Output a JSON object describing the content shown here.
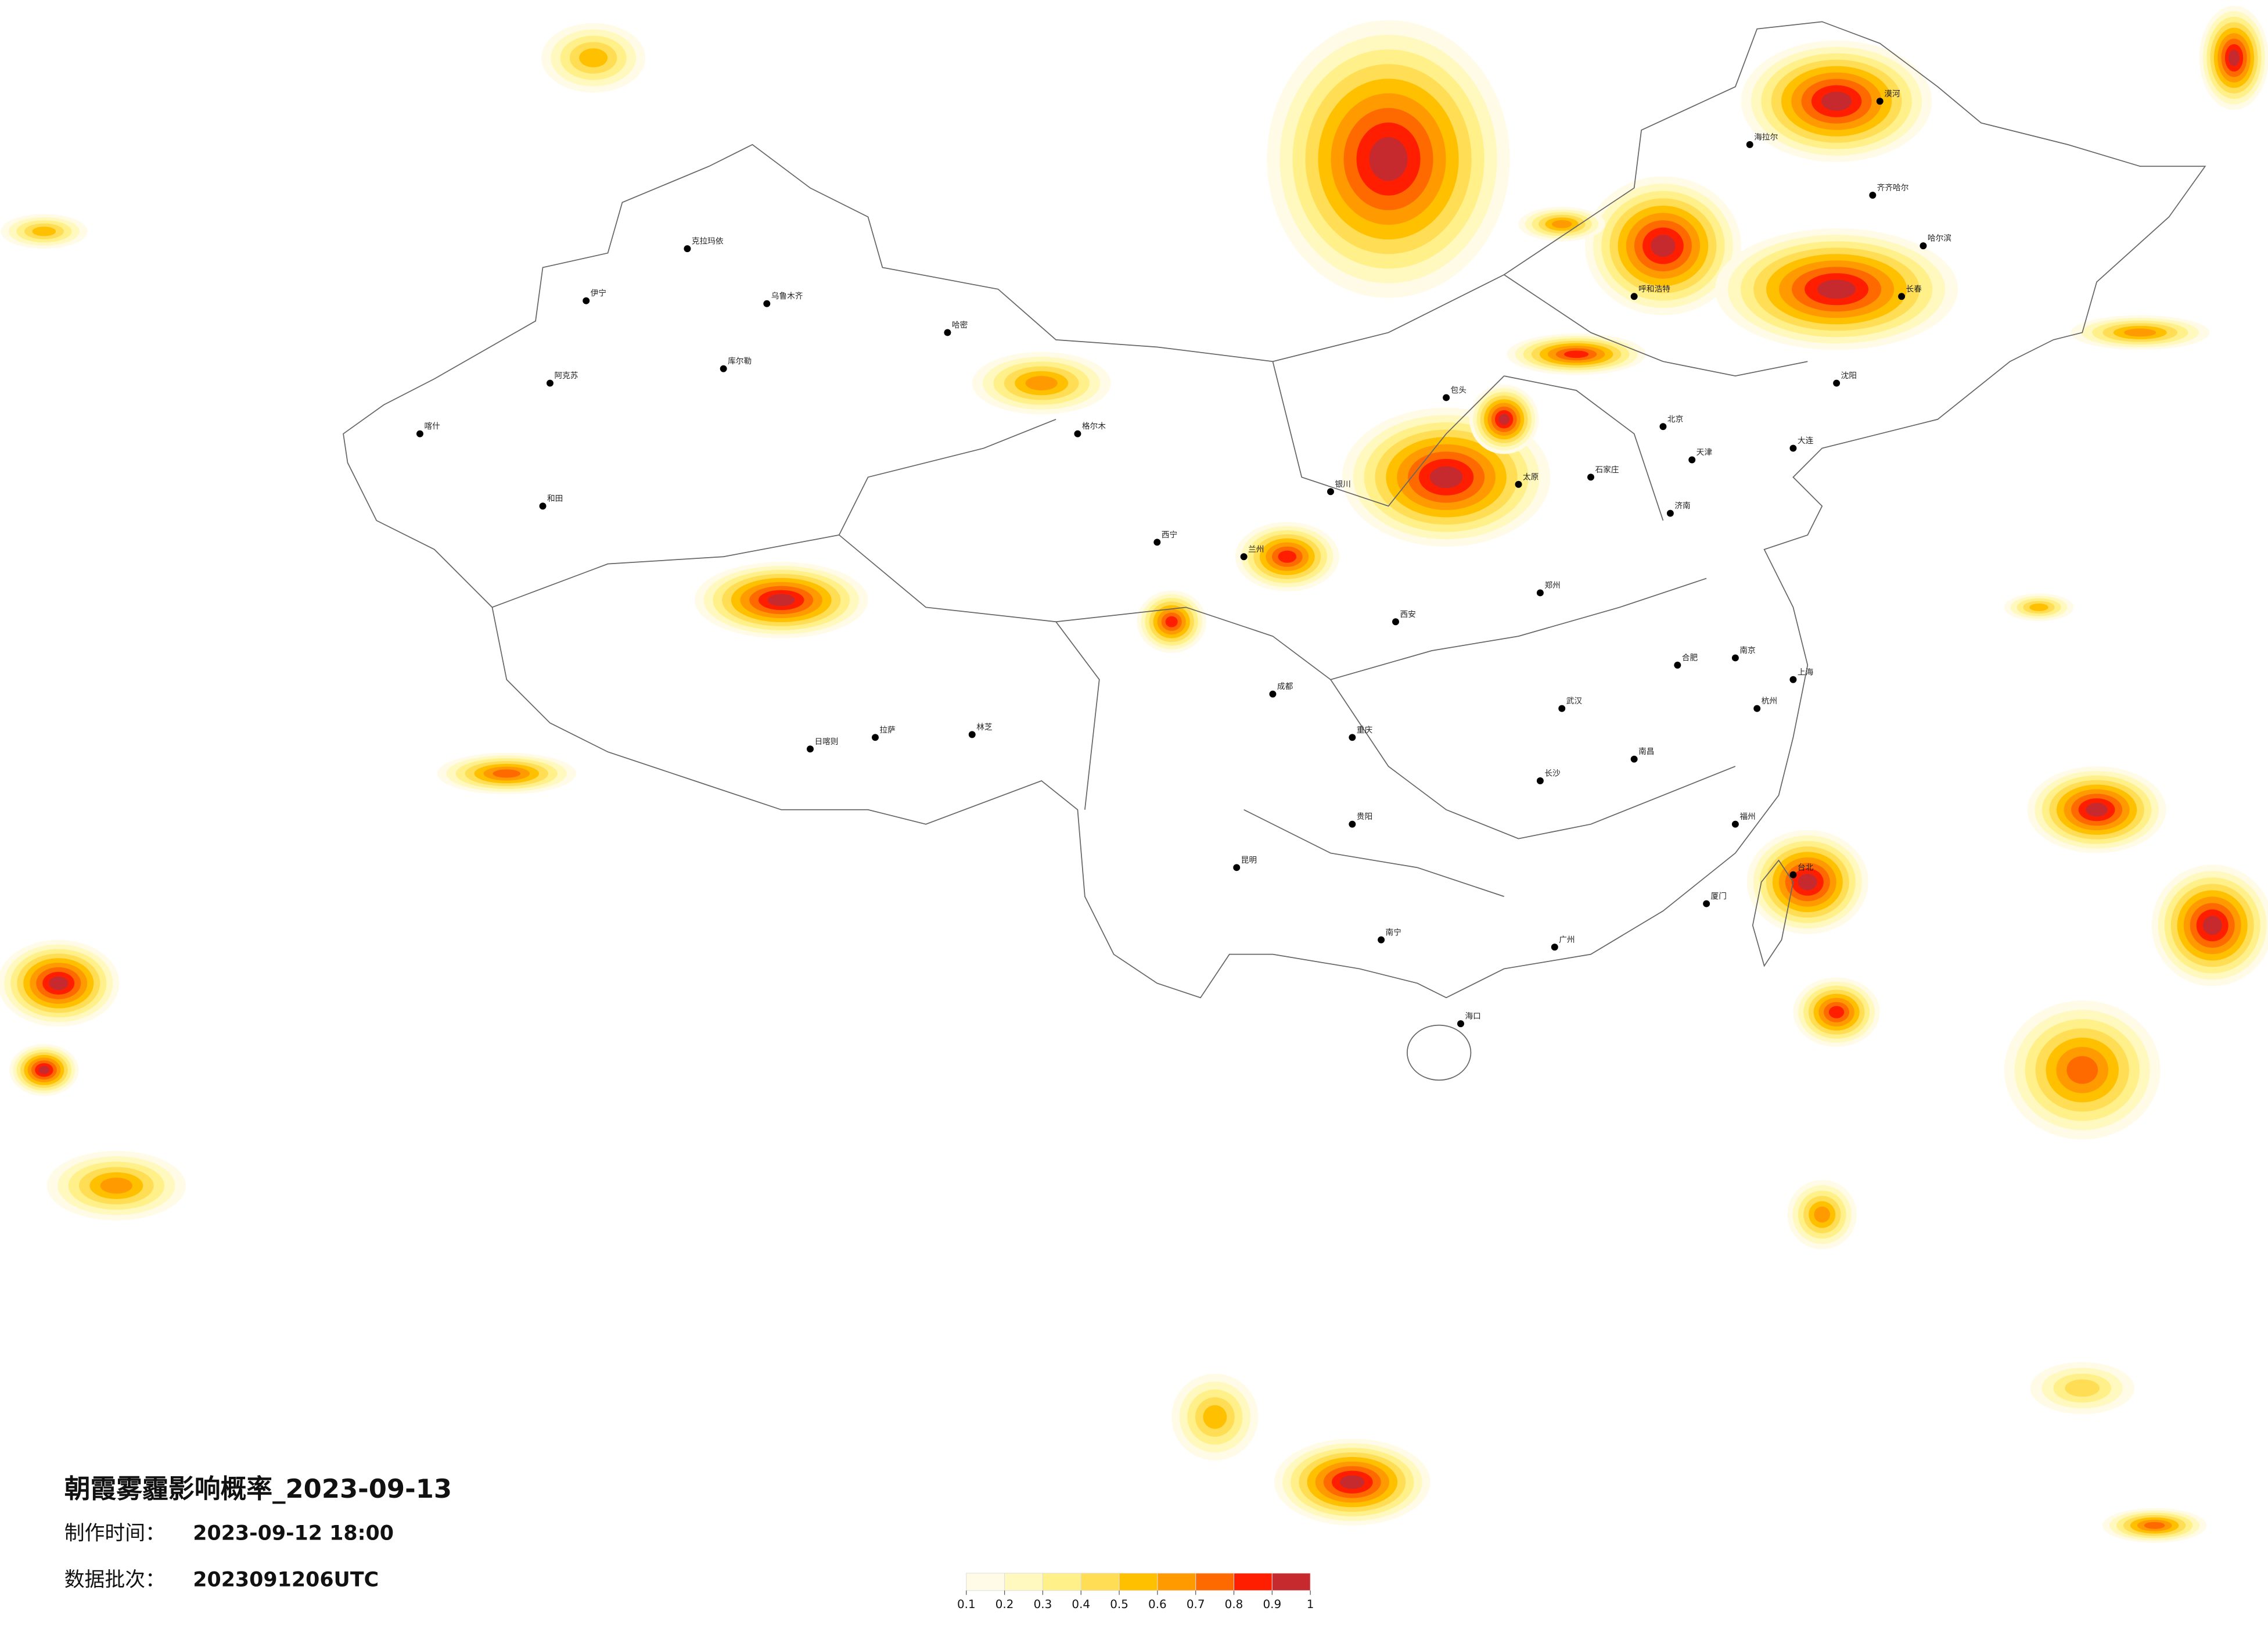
{
  "title": "朝霞雾霾影响概率_2023-09-13",
  "made_time_label": "制作时间：",
  "made_time": "2023-09-12 18:00",
  "batch_label": "数据批次：",
  "batch": "2023091206UTC",
  "legend": {
    "colors": [
      "#fffbe6",
      "#fff8bf",
      "#fff08a",
      "#ffdd55",
      "#ffc000",
      "#ff9a00",
      "#ff6a00",
      "#ff1e00",
      "#c62a2f"
    ],
    "ticks": [
      0.1,
      0.2,
      0.3,
      0.4,
      0.5,
      0.6,
      0.7,
      0.8,
      0.9,
      1
    ]
  },
  "cities": [
    "北京",
    "天津",
    "上海",
    "广州",
    "重庆",
    "成都",
    "武汉",
    "西安",
    "郑州",
    "南京",
    "杭州",
    "长沙",
    "昆明",
    "贵阳",
    "南宁",
    "海口",
    "拉萨",
    "乌鲁木齐",
    "呼和浩特",
    "哈尔滨",
    "长春",
    "沈阳",
    "兰州",
    "西宁",
    "银川",
    "太原",
    "石家庄",
    "济南",
    "合肥",
    "南昌",
    "福州",
    "台北",
    "喀什",
    "和田",
    "伊宁",
    "克拉玛依",
    "阿克苏",
    "库尔勒",
    "哈密",
    "格尔木",
    "日喀则",
    "林芝",
    "海拉尔",
    "齐齐哈尔",
    "漠河",
    "包头",
    "大连",
    "厦门"
  ]
}
